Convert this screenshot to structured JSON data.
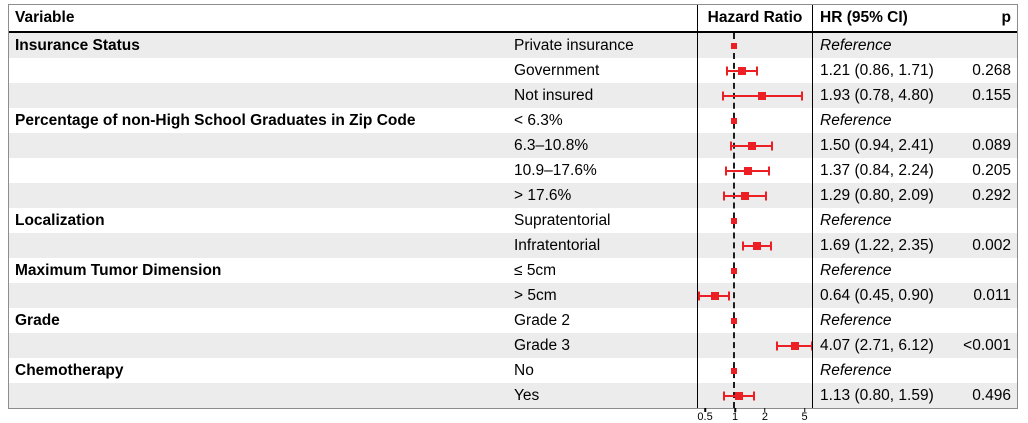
{
  "header": {
    "variable": "Variable",
    "hazard_ratio": "Hazard Ratio",
    "hr_ci": "HR (95% CI)",
    "p": "p"
  },
  "colors": {
    "marker": "#ec2024",
    "row_alt": "#ececec",
    "dash_line": "#1c1c1c"
  },
  "chart_data": {
    "type": "forest",
    "title": "Hazard Ratio",
    "x_scale": "log10",
    "x_ticks": [
      "0.5",
      "1",
      "2",
      "5"
    ],
    "x_tick_values": [
      0.5,
      1,
      2,
      5
    ],
    "reference_line": 1,
    "xlim": [
      0.42,
      6.3
    ],
    "rows": [
      {
        "variable": "Insurance Status",
        "category": "Private insurance",
        "reference": true,
        "hr": 1.0,
        "hr_ci_label": "Reference",
        "p": ""
      },
      {
        "variable": "",
        "category": "Government",
        "reference": false,
        "hr": 1.21,
        "lo": 0.86,
        "hi": 1.71,
        "hr_ci_label": "1.21 (0.86, 1.71)",
        "p": "0.268"
      },
      {
        "variable": "",
        "category": "Not insured",
        "reference": false,
        "hr": 1.93,
        "lo": 0.78,
        "hi": 4.8,
        "hr_ci_label": "1.93 (0.78, 4.80)",
        "p": "0.155"
      },
      {
        "variable": "Percentage of non-High School Graduates in Zip Code",
        "category": "< 6.3%",
        "reference": true,
        "hr": 1.0,
        "hr_ci_label": "Reference",
        "p": ""
      },
      {
        "variable": "",
        "category": "6.3–10.8%",
        "reference": false,
        "hr": 1.5,
        "lo": 0.94,
        "hi": 2.41,
        "hr_ci_label": "1.50 (0.94, 2.41)",
        "p": "0.089"
      },
      {
        "variable": "",
        "category": "10.9–17.6%",
        "reference": false,
        "hr": 1.37,
        "lo": 0.84,
        "hi": 2.24,
        "hr_ci_label": "1.37 (0.84, 2.24)",
        "p": "0.205"
      },
      {
        "variable": "",
        "category": "> 17.6%",
        "reference": false,
        "hr": 1.29,
        "lo": 0.8,
        "hi": 2.09,
        "hr_ci_label": "1.29 (0.80, 2.09)",
        "p": "0.292"
      },
      {
        "variable": "Localization",
        "category": "Supratentorial",
        "reference": true,
        "hr": 1.0,
        "hr_ci_label": "Reference",
        "p": ""
      },
      {
        "variable": "",
        "category": "Infratentorial",
        "reference": false,
        "hr": 1.69,
        "lo": 1.22,
        "hi": 2.35,
        "hr_ci_label": "1.69 (1.22, 2.35)",
        "p": "0.002"
      },
      {
        "variable": "Maximum Tumor Dimension",
        "category": "≤ 5cm",
        "reference": true,
        "hr": 1.0,
        "hr_ci_label": "Reference",
        "p": ""
      },
      {
        "variable": "",
        "category": "> 5cm",
        "reference": false,
        "hr": 0.64,
        "lo": 0.45,
        "hi": 0.9,
        "hr_ci_label": "0.64 (0.45, 0.90)",
        "p": "0.011"
      },
      {
        "variable": "Grade",
        "category": "Grade 2",
        "reference": true,
        "hr": 1.0,
        "hr_ci_label": "Reference",
        "p": ""
      },
      {
        "variable": "",
        "category": "Grade 3",
        "reference": false,
        "hr": 4.07,
        "lo": 2.71,
        "hi": 6.12,
        "hr_ci_label": "4.07 (2.71, 6.12)",
        "p": "<0.001"
      },
      {
        "variable": "Chemotherapy",
        "category": "No",
        "reference": true,
        "hr": 1.0,
        "hr_ci_label": "Reference",
        "p": ""
      },
      {
        "variable": "",
        "category": "Yes",
        "reference": false,
        "hr": 1.13,
        "lo": 0.8,
        "hi": 1.59,
        "hr_ci_label": "1.13 (0.80, 1.59)",
        "p": "0.496"
      }
    ]
  }
}
